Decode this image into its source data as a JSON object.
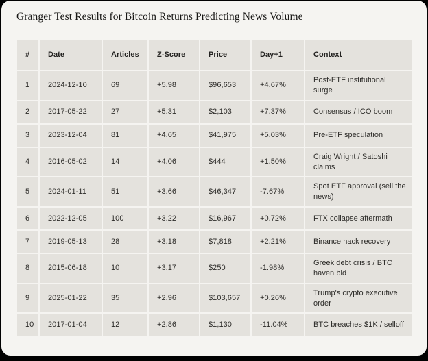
{
  "title": "Granger Test Results for Bitcoin Returns Predicting News Volume",
  "colors": {
    "frame": "#010101",
    "card_bg": "#f5f4f1",
    "row_bg": "#e4e2dd",
    "text": "#2e2d2a"
  },
  "table": {
    "columns": [
      "#",
      "Date",
      "Articles",
      "Z-Score",
      "Price",
      "Day+1",
      "Context"
    ],
    "rows": [
      {
        "rank": "1",
        "date": "2024-12-10",
        "articles": "69",
        "z_score": "+5.98",
        "price": "$96,653",
        "day_plus_1": "+4.67%",
        "context": "Post-ETF institutional surge"
      },
      {
        "rank": "2",
        "date": "2017-05-22",
        "articles": "27",
        "z_score": "+5.31",
        "price": "$2,103",
        "day_plus_1": "+7.37%",
        "context": "Consensus / ICO boom"
      },
      {
        "rank": "3",
        "date": "2023-12-04",
        "articles": "81",
        "z_score": "+4.65",
        "price": "$41,975",
        "day_plus_1": "+5.03%",
        "context": "Pre-ETF speculation"
      },
      {
        "rank": "4",
        "date": "2016-05-02",
        "articles": "14",
        "z_score": "+4.06",
        "price": "$444",
        "day_plus_1": "+1.50%",
        "context": "Craig Wright / Satoshi claims"
      },
      {
        "rank": "5",
        "date": "2024-01-11",
        "articles": "51",
        "z_score": "+3.66",
        "price": "$46,347",
        "day_plus_1": "-7.67%",
        "context": "Spot ETF approval (sell the news)"
      },
      {
        "rank": "6",
        "date": "2022-12-05",
        "articles": "100",
        "z_score": "+3.22",
        "price": "$16,967",
        "day_plus_1": "+0.72%",
        "context": "FTX collapse aftermath"
      },
      {
        "rank": "7",
        "date": "2019-05-13",
        "articles": "28",
        "z_score": "+3.18",
        "price": "$7,818",
        "day_plus_1": "+2.21%",
        "context": "Binance hack recovery"
      },
      {
        "rank": "8",
        "date": "2015-06-18",
        "articles": "10",
        "z_score": "+3.17",
        "price": "$250",
        "day_plus_1": "-1.98%",
        "context": "Greek debt crisis / BTC haven bid"
      },
      {
        "rank": "9",
        "date": "2025-01-22",
        "articles": "35",
        "z_score": "+2.96",
        "price": "$103,657",
        "day_plus_1": "+0.26%",
        "context": "Trump's crypto executive order"
      },
      {
        "rank": "10",
        "date": "2017-01-04",
        "articles": "12",
        "z_score": "+2.86",
        "price": "$1,130",
        "day_plus_1": "-11.04%",
        "context": "BTC breaches $1K / selloff"
      }
    ]
  }
}
